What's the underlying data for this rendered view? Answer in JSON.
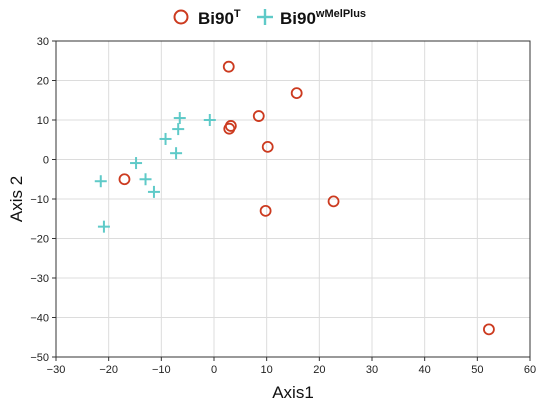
{
  "chart_data": {
    "type": "scatter",
    "xlabel": "Axis1",
    "ylabel": "Axis 2",
    "xlim": [
      -30,
      60
    ],
    "ylim": [
      -50,
      30
    ],
    "xticks": [
      -30,
      -20,
      -10,
      0,
      10,
      20,
      30,
      40,
      50,
      60
    ],
    "yticks": [
      -50,
      -40,
      -30,
      -20,
      -10,
      0,
      10,
      20,
      30
    ],
    "xtick_labels": [
      "−30",
      "−20",
      "−10",
      "0",
      "10",
      "20",
      "30",
      "40",
      "50",
      "60"
    ],
    "ytick_labels": [
      "−50",
      "−40",
      "−30",
      "−20",
      "−10",
      "0",
      "10",
      "20",
      "30"
    ],
    "grid": true,
    "legend_position": "top-center",
    "series": [
      {
        "name": "Bi90",
        "name_sup": "T",
        "marker": "circle-open",
        "color": "#cc3a1f",
        "points": [
          {
            "x": 2.8,
            "y": 23.5
          },
          {
            "x": 15.7,
            "y": 16.8
          },
          {
            "x": 8.5,
            "y": 11.0
          },
          {
            "x": 3.2,
            "y": 8.5
          },
          {
            "x": 2.9,
            "y": 7.8
          },
          {
            "x": 10.2,
            "y": 3.2
          },
          {
            "x": -17.0,
            "y": -5.0
          },
          {
            "x": 22.7,
            "y": -10.6
          },
          {
            "x": 9.8,
            "y": -13.0
          },
          {
            "x": 52.2,
            "y": -43.0
          }
        ]
      },
      {
        "name": "Bi90",
        "name_sup": "wMelPlus",
        "marker": "plus",
        "color": "#5fcac8",
        "points": [
          {
            "x": -6.5,
            "y": 10.5
          },
          {
            "x": -0.8,
            "y": 10.0
          },
          {
            "x": -6.8,
            "y": 7.7
          },
          {
            "x": -9.2,
            "y": 5.2
          },
          {
            "x": -7.2,
            "y": 1.6
          },
          {
            "x": -14.8,
            "y": -0.9
          },
          {
            "x": -21.5,
            "y": -5.5
          },
          {
            "x": -13.0,
            "y": -5.0
          },
          {
            "x": -11.4,
            "y": -8.2
          },
          {
            "x": -20.9,
            "y": -17.0
          }
        ]
      }
    ]
  }
}
